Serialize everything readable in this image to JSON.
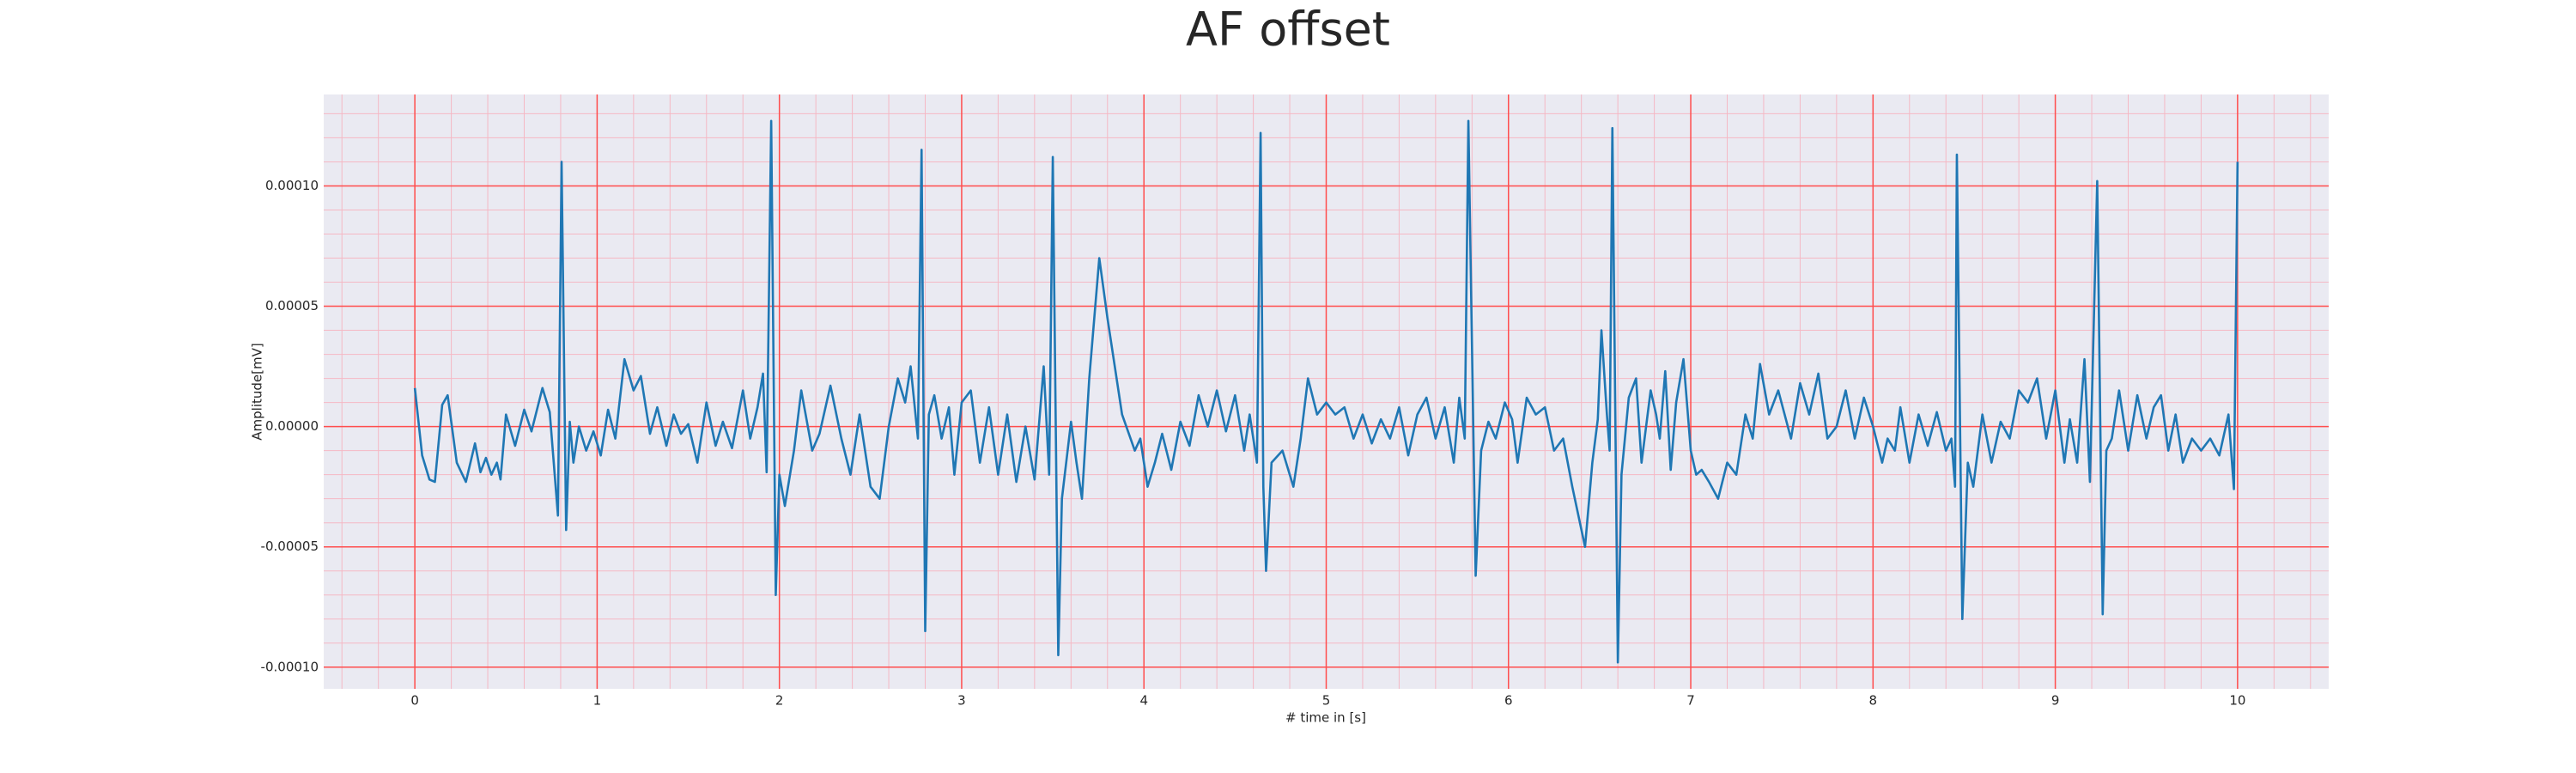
{
  "chart_data": {
    "type": "line",
    "title": "AF offset",
    "xlabel": "# time in [s]",
    "ylabel": "Amplitude[mV]",
    "color": "#1f77b4",
    "background": "#eaeaf2",
    "grid": true,
    "grid_color": "#ff4d4d",
    "minor_grid": {
      "x_step": 0.2,
      "y_step": 1e-05,
      "color": "#f5b8c4"
    },
    "xlim": [
      -0.5,
      10.5
    ],
    "ylim": [
      -0.000109,
      0.000138
    ],
    "xticks": [
      0,
      1,
      2,
      3,
      4,
      5,
      6,
      7,
      8,
      9,
      10
    ],
    "yticks": [
      {
        "value": -0.0001,
        "label": "-0.00010"
      },
      {
        "value": -5e-05,
        "label": "-0.00005"
      },
      {
        "value": 0,
        "label": "0.00000"
      },
      {
        "value": 5e-05,
        "label": "0.00005"
      },
      {
        "value": 0.0001,
        "label": "0.00010"
      }
    ],
    "x": [
      0,
      0.04,
      0.08,
      0.11,
      0.15,
      0.18,
      0.23,
      0.28,
      0.33,
      0.36,
      0.39,
      0.42,
      0.45,
      0.47,
      0.5,
      0.55,
      0.6,
      0.64,
      0.7,
      0.74,
      0.785,
      0.805,
      0.83,
      0.85,
      0.87,
      0.9,
      0.94,
      0.98,
      1.02,
      1.06,
      1.1,
      1.15,
      1.2,
      1.24,
      1.29,
      1.33,
      1.38,
      1.42,
      1.46,
      1.5,
      1.55,
      1.6,
      1.65,
      1.69,
      1.74,
      1.8,
      1.84,
      1.88,
      1.91,
      1.93,
      1.955,
      1.98,
      2.0,
      2.03,
      2.08,
      2.12,
      2.18,
      2.22,
      2.28,
      2.34,
      2.39,
      2.44,
      2.5,
      2.55,
      2.6,
      2.65,
      2.69,
      2.72,
      2.76,
      2.78,
      2.8,
      2.82,
      2.85,
      2.89,
      2.93,
      2.96,
      3.0,
      3.05,
      3.1,
      3.15,
      3.2,
      3.25,
      3.3,
      3.35,
      3.4,
      3.45,
      3.48,
      3.5,
      3.53,
      3.55,
      3.6,
      3.63,
      3.66,
      3.7,
      3.755,
      3.8,
      3.88,
      3.95,
      3.98,
      4.02,
      4.06,
      4.1,
      4.15,
      4.2,
      4.25,
      4.3,
      4.35,
      4.4,
      4.45,
      4.5,
      4.55,
      4.58,
      4.62,
      4.64,
      4.655,
      4.67,
      4.7,
      4.76,
      4.82,
      4.86,
      4.9,
      4.95,
      5.0,
      5.05,
      5.1,
      5.15,
      5.2,
      5.25,
      5.3,
      5.35,
      5.4,
      5.45,
      5.5,
      5.55,
      5.6,
      5.65,
      5.7,
      5.73,
      5.76,
      5.78,
      5.82,
      5.85,
      5.89,
      5.93,
      5.98,
      6.02,
      6.05,
      6.1,
      6.15,
      6.2,
      6.25,
      6.3,
      6.35,
      6.42,
      6.46,
      6.49,
      6.51,
      6.54,
      6.555,
      6.57,
      6.6,
      6.62,
      6.66,
      6.7,
      6.73,
      6.78,
      6.81,
      6.83,
      6.86,
      6.89,
      6.92,
      6.96,
      7.0,
      7.03,
      7.06,
      7.1,
      7.15,
      7.2,
      7.25,
      7.3,
      7.34,
      7.38,
      7.43,
      7.48,
      7.55,
      7.6,
      7.65,
      7.7,
      7.75,
      7.8,
      7.85,
      7.9,
      7.95,
      8.0,
      8.05,
      8.08,
      8.12,
      8.15,
      8.2,
      8.25,
      8.3,
      8.35,
      8.4,
      8.43,
      8.45,
      8.46,
      8.49,
      8.52,
      8.55,
      8.6,
      8.65,
      8.7,
      8.75,
      8.8,
      8.85,
      8.9,
      8.95,
      9.0,
      9.05,
      9.08,
      9.12,
      9.16,
      9.19,
      9.23,
      9.26,
      9.28,
      9.31,
      9.35,
      9.4,
      9.45,
      9.5,
      9.54,
      9.58,
      9.62,
      9.66,
      9.7,
      9.75,
      9.8,
      9.85,
      9.9,
      9.95,
      9.98,
      10.0
    ],
    "values": [
      1.6e-05,
      -1.2e-05,
      -2.2e-05,
      -2.3e-05,
      9e-06,
      1.3e-05,
      -1.5e-05,
      -2.3e-05,
      -7e-06,
      -1.9e-05,
      -1.3e-05,
      -2e-05,
      -1.5e-05,
      -2.2e-05,
      5e-06,
      -8e-06,
      7e-06,
      -2e-06,
      1.6e-05,
      6e-06,
      -3.7e-05,
      0.00011,
      -4.3e-05,
      2e-06,
      -1.5e-05,
      0,
      -1e-05,
      -2e-06,
      -1.2e-05,
      7e-06,
      -5e-06,
      2.8e-05,
      1.5e-05,
      2.1e-05,
      -3e-06,
      8e-06,
      -8e-06,
      5e-06,
      -3e-06,
      1e-06,
      -1.5e-05,
      1e-05,
      -8e-06,
      2e-06,
      -9e-06,
      1.5e-05,
      -5e-06,
      8e-06,
      2.2e-05,
      -1.9e-05,
      0.000127,
      -7e-05,
      -2e-05,
      -3.3e-05,
      -1e-05,
      1.5e-05,
      -1e-05,
      -3e-06,
      1.7e-05,
      -5e-06,
      -2e-05,
      5e-06,
      -2.5e-05,
      -3e-05,
      0,
      2e-05,
      1e-05,
      2.5e-05,
      -5e-06,
      0.000115,
      -8.5e-05,
      5e-06,
      1.3e-05,
      -5e-06,
      8e-06,
      -2e-05,
      1e-05,
      1.5e-05,
      -1.5e-05,
      8e-06,
      -2e-05,
      5e-06,
      -2.3e-05,
      0,
      -2.2e-05,
      2.5e-05,
      -2e-05,
      0.000112,
      -9.5e-05,
      -3e-05,
      2e-06,
      -1.5e-05,
      -3e-05,
      2e-05,
      7e-05,
      4.5e-05,
      5e-06,
      -1e-05,
      -5e-06,
      -2.5e-05,
      -1.5e-05,
      -3e-06,
      -1.8e-05,
      2e-06,
      -8e-06,
      1.3e-05,
      0,
      1.5e-05,
      -2e-06,
      1.3e-05,
      -1e-05,
      5e-06,
      -1.5e-05,
      0.000122,
      -2.5e-05,
      -6e-05,
      -1.5e-05,
      -1e-05,
      -2.5e-05,
      -5e-06,
      2e-05,
      5e-06,
      1e-05,
      5e-06,
      8e-06,
      -5e-06,
      5e-06,
      -7e-06,
      3e-06,
      -5e-06,
      8e-06,
      -1.2e-05,
      5e-06,
      1.2e-05,
      -5e-06,
      8e-06,
      -1.5e-05,
      1.2e-05,
      -5e-06,
      0.000127,
      -6.2e-05,
      -1e-05,
      2e-06,
      -5e-06,
      1e-05,
      3e-06,
      -1.5e-05,
      1.2e-05,
      5e-06,
      8e-06,
      -1e-05,
      -5e-06,
      -2.5e-05,
      -5e-05,
      -1.5e-05,
      3e-06,
      4e-05,
      5e-06,
      -1e-05,
      0.000124,
      -9.8e-05,
      -2e-05,
      1.2e-05,
      2e-05,
      -1.5e-05,
      1.5e-05,
      5e-06,
      -5e-06,
      2.3e-05,
      -1.8e-05,
      1e-05,
      2.8e-05,
      -1e-05,
      -2e-05,
      -1.8e-05,
      -2.3e-05,
      -3e-05,
      -1.5e-05,
      -2e-05,
      5e-06,
      -5e-06,
      2.6e-05,
      5e-06,
      1.5e-05,
      -5e-06,
      1.8e-05,
      5e-06,
      2.2e-05,
      -5e-06,
      0,
      1.5e-05,
      -5e-06,
      1.2e-05,
      0,
      -1.5e-05,
      -5e-06,
      -1e-05,
      8e-06,
      -1.5e-05,
      5e-06,
      -8e-06,
      6e-06,
      -1e-05,
      -5e-06,
      -2.5e-05,
      0.000113,
      -8e-05,
      -1.5e-05,
      -2.5e-05,
      5e-06,
      -1.5e-05,
      2e-06,
      -5e-06,
      1.5e-05,
      1e-05,
      2e-05,
      -5e-06,
      1.5e-05,
      -1.5e-05,
      3e-06,
      -1.5e-05,
      2.8e-05,
      -2.3e-05,
      0.000102,
      -7.8e-05,
      -1e-05,
      -5e-06,
      1.5e-05,
      -1e-05,
      1.3e-05,
      -5e-06,
      8e-06,
      1.3e-05,
      -1e-05,
      5e-06,
      -1.5e-05,
      -5e-06,
      -1e-05,
      -5e-06,
      -1.2e-05,
      5e-06,
      -2.6e-05,
      0.00011
    ]
  }
}
